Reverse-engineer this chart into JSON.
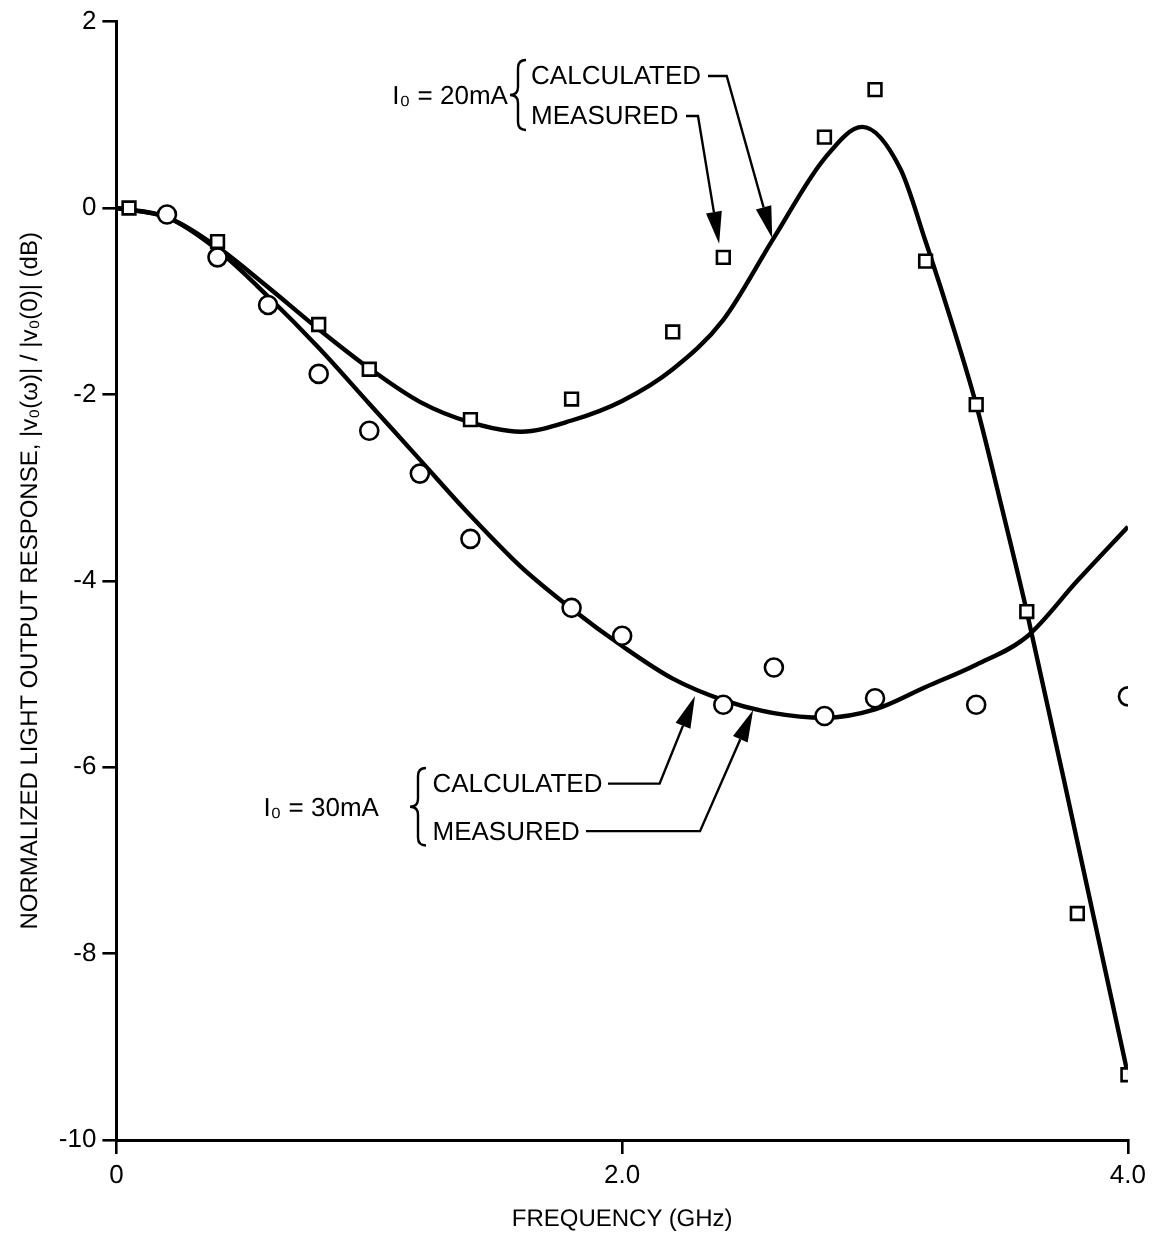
{
  "chart_data": {
    "type": "line",
    "xlabel": "FREQUENCY (GHz)",
    "ylabel": "NORMALIZED LIGHT OUTPUT RESPONSE, |v₀(ω)| / |v₀(0)| (dB)",
    "xlim": [
      0,
      4
    ],
    "xticks": [
      0,
      {
        "value": 2,
        "label": "2.0"
      },
      {
        "value": 4,
        "label": "4.0"
      }
    ],
    "ylim": [
      -10,
      2
    ],
    "yticks": [
      -10,
      -8,
      -6,
      -4,
      -2,
      0,
      2
    ],
    "series": [
      {
        "marker": "none",
        "color": "#000000",
        "x": [
          0,
          0.2,
          0.4,
          0.6,
          0.8,
          1.0,
          1.2,
          1.4,
          1.6,
          1.8,
          2.0,
          2.2,
          2.4,
          2.6,
          2.8,
          2.95,
          3.1,
          3.2,
          3.3,
          3.4,
          3.5,
          3.6,
          3.8,
          4.0
        ],
        "values": [
          0,
          -0.1,
          -0.42,
          -0.85,
          -1.3,
          -1.72,
          -2.08,
          -2.3,
          -2.4,
          -2.28,
          -2.07,
          -1.73,
          -1.2,
          -0.32,
          0.53,
          0.87,
          0.42,
          -0.36,
          -1.2,
          -2.11,
          -3.2,
          -4.33,
          -6.8,
          -9.3
        ]
      },
      {
        "type": "scatter",
        "marker": "square",
        "color": "#000000",
        "x": [
          0.05,
          0.4,
          0.8,
          1.0,
          1.4,
          1.8,
          2.2,
          2.4,
          2.8,
          3.0,
          3.2,
          3.4,
          3.6,
          3.8,
          4.0
        ],
        "values": [
          0,
          -0.36,
          -1.25,
          -1.73,
          -2.27,
          -2.05,
          -1.33,
          -0.53,
          0.76,
          1.27,
          -0.57,
          -2.11,
          -4.33,
          -7.57,
          -9.3
        ]
      },
      {
        "marker": "none",
        "color": "#000000",
        "x": [
          0,
          0.2,
          0.4,
          0.6,
          0.8,
          1.0,
          1.2,
          1.4,
          1.6,
          1.8,
          2.0,
          2.2,
          2.4,
          2.6,
          2.8,
          3.0,
          3.2,
          3.4,
          3.6,
          3.8,
          4.0
        ],
        "values": [
          0,
          -0.1,
          -0.45,
          -0.95,
          -1.5,
          -2.1,
          -2.7,
          -3.3,
          -3.85,
          -4.3,
          -4.7,
          -5.05,
          -5.28,
          -5.42,
          -5.47,
          -5.38,
          -5.14,
          -4.9,
          -4.6,
          -4.0,
          -3.42
        ]
      },
      {
        "type": "scatter",
        "marker": "circle",
        "color": "#000000",
        "x": [
          0.2,
          0.4,
          0.6,
          0.8,
          1.0,
          1.2,
          1.4,
          1.8,
          2.0,
          2.4,
          2.6,
          2.8,
          3.0,
          3.4,
          4.0
        ],
        "values": [
          -0.07,
          -0.53,
          -1.04,
          -1.78,
          -2.39,
          -2.85,
          -3.55,
          -4.29,
          -4.59,
          -5.33,
          -4.93,
          -5.45,
          -5.26,
          -5.33,
          -5.24
        ]
      }
    ],
    "annotations": [
      "I₀ = 20mA",
      "CALCULATED",
      "MEASURED",
      "I₀ = 30mA",
      "CALCULATED",
      "MEASURED"
    ]
  }
}
